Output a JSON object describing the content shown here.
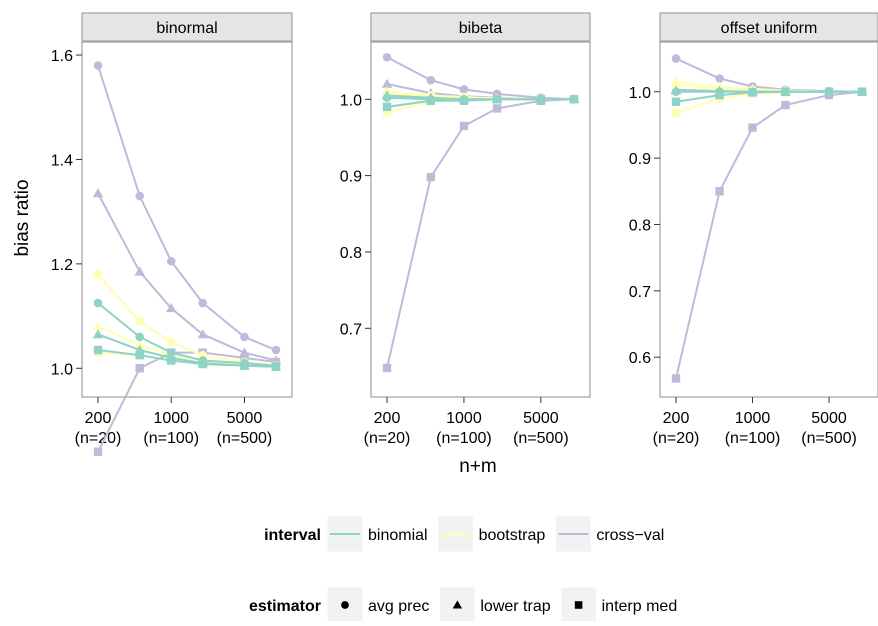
{
  "chart_data": {
    "type": "line",
    "xlabel": "n+m",
    "ylabel": "bias ratio",
    "x_values": [
      200,
      500,
      1000,
      2000,
      5000,
      10000
    ],
    "x_scale": "log",
    "x_ticks": [
      {
        "value": 200,
        "line1": "200",
        "line2": "(n=20)"
      },
      {
        "value": 1000,
        "line1": "1000",
        "line2": "(n=100)"
      },
      {
        "value": 5000,
        "line1": "5000",
        "line2": "(n=500)"
      }
    ],
    "colors": {
      "binomial": "#8ed3c5",
      "bootstrap": "#ffffb3",
      "cross-val": "#bebada"
    },
    "legend": {
      "interval": {
        "title": "interval",
        "items": [
          {
            "key": "binomial",
            "label": "binomial"
          },
          {
            "key": "bootstrap",
            "label": "bootstrap"
          },
          {
            "key": "cross-val",
            "label": "cross−val"
          }
        ]
      },
      "estimator": {
        "title": "estimator",
        "items": [
          {
            "key": "avg prec",
            "label": "avg prec",
            "shape": "circle"
          },
          {
            "key": "lower trap",
            "label": "lower trap",
            "shape": "triangle"
          },
          {
            "key": "interp med",
            "label": "interp med",
            "shape": "square"
          }
        ]
      },
      "position": "bottom"
    },
    "panels": [
      {
        "title": "binormal",
        "ylim": [
          0.945,
          1.625
        ],
        "y_ticks": [
          {
            "value": 1.0,
            "label": "1.0"
          },
          {
            "value": 1.2,
            "label": "1.2"
          },
          {
            "value": 1.4,
            "label": "1.4"
          },
          {
            "value": 1.6,
            "label": "1.6"
          }
        ],
        "series": [
          {
            "interval": "binomial",
            "estimator": "avg prec",
            "values": [
              1.125,
              1.06,
              1.03,
              1.015,
              1.01,
              1.005
            ]
          },
          {
            "interval": "binomial",
            "estimator": "lower trap",
            "values": [
              1.065,
              1.035,
              1.02,
              1.01,
              1.005,
              1.003
            ]
          },
          {
            "interval": "binomial",
            "estimator": "interp med",
            "values": [
              1.035,
              1.025,
              1.015,
              1.008,
              1.005,
              1.003
            ]
          },
          {
            "interval": "bootstrap",
            "estimator": "avg prec",
            "values": [
              1.18,
              1.09,
              1.05,
              1.025,
              1.012,
              1.006
            ]
          },
          {
            "interval": "bootstrap",
            "estimator": "lower trap",
            "values": [
              1.08,
              1.045,
              1.025,
              1.015,
              1.008,
              1.004
            ]
          },
          {
            "interval": "bootstrap",
            "estimator": "interp med",
            "values": [
              1.03,
              1.025,
              1.015,
              1.01,
              1.005,
              1.003
            ]
          },
          {
            "interval": "cross-val",
            "estimator": "avg prec",
            "values": [
              1.58,
              1.33,
              1.205,
              1.125,
              1.06,
              1.035
            ]
          },
          {
            "interval": "cross-val",
            "estimator": "lower trap",
            "values": [
              1.335,
              1.185,
              1.115,
              1.065,
              1.03,
              1.015
            ]
          },
          {
            "interval": "cross-val",
            "estimator": "interp med",
            "values": [
              0.84,
              1.0,
              1.03,
              1.03,
              1.02,
              1.012
            ]
          }
        ]
      },
      {
        "title": "bibeta",
        "ylim": [
          0.61,
          1.075
        ],
        "y_ticks": [
          {
            "value": 0.7,
            "label": "0.7"
          },
          {
            "value": 0.8,
            "label": "0.8"
          },
          {
            "value": 0.9,
            "label": "0.9"
          },
          {
            "value": 1.0,
            "label": "1.0"
          }
        ],
        "series": [
          {
            "interval": "binomial",
            "estimator": "avg prec",
            "values": [
              1.002,
              1.0,
              1.0,
              1.0,
              1.0,
              1.0
            ]
          },
          {
            "interval": "binomial",
            "estimator": "lower trap",
            "values": [
              1.005,
              1.002,
              1.0,
              1.0,
              1.0,
              1.0
            ]
          },
          {
            "interval": "binomial",
            "estimator": "interp med",
            "values": [
              0.99,
              0.998,
              0.998,
              1.0,
              1.0,
              1.0
            ]
          },
          {
            "interval": "bootstrap",
            "estimator": "avg prec",
            "values": [
              1.01,
              1.005,
              1.003,
              1.001,
              1.0,
              1.0
            ]
          },
          {
            "interval": "bootstrap",
            "estimator": "lower trap",
            "values": [
              1.008,
              1.003,
              1.002,
              1.001,
              1.0,
              1.0
            ]
          },
          {
            "interval": "bootstrap",
            "estimator": "interp med",
            "values": [
              0.983,
              0.997,
              0.999,
              1.0,
              1.0,
              1.0
            ]
          },
          {
            "interval": "cross-val",
            "estimator": "avg prec",
            "values": [
              1.055,
              1.025,
              1.013,
              1.007,
              1.002,
              1.0
            ]
          },
          {
            "interval": "cross-val",
            "estimator": "lower trap",
            "values": [
              1.02,
              1.008,
              1.004,
              1.002,
              1.0,
              1.0
            ]
          },
          {
            "interval": "cross-val",
            "estimator": "interp med",
            "values": [
              0.648,
              0.898,
              0.965,
              0.988,
              0.998,
              1.0
            ]
          }
        ]
      },
      {
        "title": "offset uniform",
        "ylim": [
          0.54,
          1.075
        ],
        "y_ticks": [
          {
            "value": 0.6,
            "label": "0.6"
          },
          {
            "value": 0.7,
            "label": "0.7"
          },
          {
            "value": 0.8,
            "label": "0.8"
          },
          {
            "value": 0.9,
            "label": "0.9"
          },
          {
            "value": 1.0,
            "label": "1.0"
          }
        ],
        "series": [
          {
            "interval": "binomial",
            "estimator": "avg prec",
            "values": [
              1.0,
              1.0,
              1.0,
              1.0,
              1.0,
              1.0
            ]
          },
          {
            "interval": "binomial",
            "estimator": "lower trap",
            "values": [
              1.002,
              1.001,
              1.0,
              1.0,
              1.0,
              1.0
            ]
          },
          {
            "interval": "binomial",
            "estimator": "interp med",
            "values": [
              0.985,
              0.995,
              0.999,
              1.0,
              1.0,
              1.0
            ]
          },
          {
            "interval": "bootstrap",
            "estimator": "avg prec",
            "values": [
              1.01,
              1.005,
              1.003,
              1.001,
              1.0,
              1.0
            ]
          },
          {
            "interval": "bootstrap",
            "estimator": "lower trap",
            "values": [
              1.015,
              1.007,
              1.004,
              1.002,
              1.0,
              1.0
            ]
          },
          {
            "interval": "bootstrap",
            "estimator": "interp med",
            "values": [
              0.968,
              0.99,
              0.997,
              0.999,
              1.0,
              1.0
            ]
          },
          {
            "interval": "cross-val",
            "estimator": "avg prec",
            "values": [
              1.05,
              1.02,
              1.008,
              1.003,
              1.001,
              1.0
            ]
          },
          {
            "interval": "cross-val",
            "estimator": "lower trap",
            "values": [
              1.003,
              1.001,
              1.0,
              1.0,
              1.0,
              1.0
            ]
          },
          {
            "interval": "cross-val",
            "estimator": "interp med",
            "values": [
              0.568,
              0.85,
              0.946,
              0.98,
              0.995,
              1.0
            ]
          }
        ]
      }
    ]
  }
}
